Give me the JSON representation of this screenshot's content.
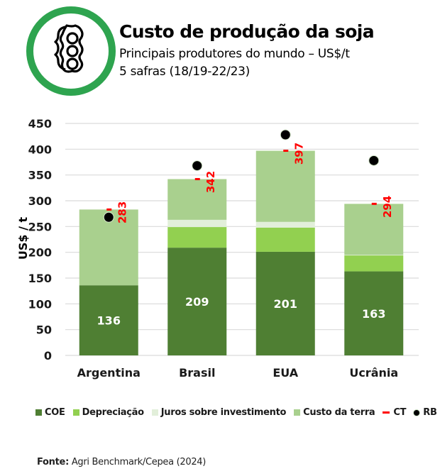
{
  "header": {
    "title": "Custo de produção da soja",
    "subtitle_1": "Principais produtores do mundo – US$/t",
    "subtitle_2": "5 safras (18/19-22/23)",
    "logo_icon": "soybean-pod-icon",
    "logo_ring_color": "#2ea44f"
  },
  "chart_data": {
    "type": "bar",
    "stacked": true,
    "title": "Custo de produção da soja",
    "ylabel": "US$ / t",
    "xlabel": "",
    "ylim": [
      0,
      450
    ],
    "yticks": [
      0,
      50,
      100,
      150,
      200,
      250,
      300,
      350,
      400,
      450
    ],
    "grid": true,
    "categories": [
      "Argentina",
      "Brasil",
      "EUA",
      "Ucrânia"
    ],
    "series": [
      {
        "name": "COE",
        "color": "#4f7f33",
        "values": [
          136,
          209,
          201,
          163
        ],
        "labels": [
          "136",
          "209",
          "201",
          "163"
        ]
      },
      {
        "name": "Depreciação",
        "color": "#92d050",
        "values": [
          0,
          40,
          47,
          31
        ]
      },
      {
        "name": "Juros sobre investimento",
        "color": "#e2efda",
        "values": [
          0,
          14,
          11,
          1
        ]
      },
      {
        "name": "Custo da terra",
        "color": "#a9d08e",
        "values": [
          147,
          79,
          138,
          99
        ]
      }
    ],
    "markers": [
      {
        "name": "CT",
        "type": "dash",
        "color": "#ff0000",
        "values": [
          283,
          342,
          397,
          294
        ],
        "labels": [
          "283",
          "342",
          "397",
          "294"
        ]
      },
      {
        "name": "RB",
        "type": "dot",
        "color": "#000000",
        "values": [
          268,
          368,
          428,
          378
        ]
      }
    ],
    "legend_position": "bottom"
  },
  "legend": {
    "items": [
      {
        "label": "COE",
        "kind": "square",
        "color": "#4f7f33"
      },
      {
        "label": "Depreciação",
        "kind": "square",
        "color": "#92d050"
      },
      {
        "label": "Juros sobre investimento",
        "kind": "square",
        "color": "#e2efda"
      },
      {
        "label": "Custo da terra",
        "kind": "square",
        "color": "#a9d08e"
      },
      {
        "label": "CT",
        "kind": "line",
        "color": "#ff0000"
      },
      {
        "label": "RB",
        "kind": "dot",
        "color": "#000000"
      }
    ]
  },
  "source": {
    "label": "Fonte:",
    "text": " Agri Benchmark/Cepea (2024)"
  }
}
